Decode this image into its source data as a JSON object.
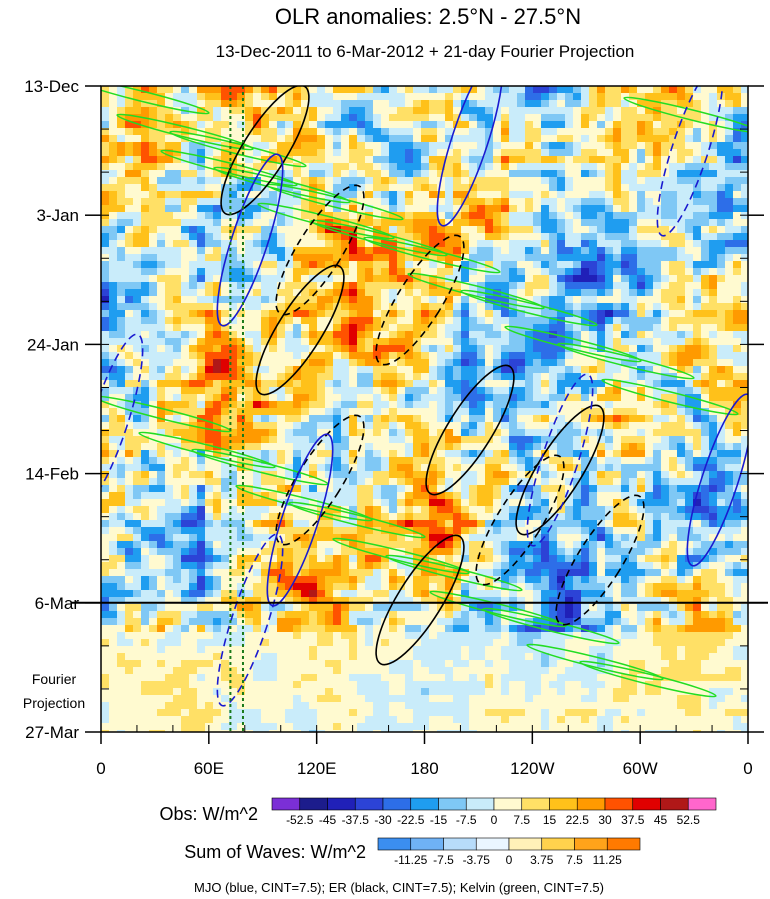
{
  "title": "OLR anomalies: 2.5°N - 27.5°N",
  "subtitle": "13-Dec-2011 to 6-Mar-2012 + 21-day Fourier Projection",
  "projection_label": [
    "Fourier",
    "Projection"
  ],
  "chart_data": {
    "type": "heatmap",
    "xlabel": "",
    "ylabel": "",
    "x_ticks": [
      {
        "lon": 0,
        "label": "0"
      },
      {
        "lon": 60,
        "label": "60E"
      },
      {
        "lon": 120,
        "label": "120E"
      },
      {
        "lon": 180,
        "label": "180"
      },
      {
        "lon": 240,
        "label": "120W"
      },
      {
        "lon": 300,
        "label": "60W"
      },
      {
        "lon": 360,
        "label": "0"
      }
    ],
    "x_range": [
      0,
      360
    ],
    "y_ticks": [
      {
        "day": 0,
        "label": "13-Dec"
      },
      {
        "day": 21,
        "label": "3-Jan"
      },
      {
        "day": 42,
        "label": "24-Jan"
      },
      {
        "day": 63,
        "label": "14-Feb"
      },
      {
        "day": 84,
        "label": "6-Mar"
      },
      {
        "day": 105,
        "label": "27-Mar"
      }
    ],
    "y_range_days": [
      0,
      105
    ],
    "observation_end_day": 84,
    "reference_lines_lon": [
      72,
      79
    ],
    "obs_colorbar": {
      "label": "Obs: W/m^2",
      "levels": [
        "-52.5",
        "-45",
        "-37.5",
        "-30",
        "-22.5",
        "-15",
        "-7.5",
        "0",
        "7.5",
        "15",
        "22.5",
        "30",
        "37.5",
        "45",
        "52.5"
      ],
      "colors": [
        "#7b2fd6",
        "#1c1c8c",
        "#2020b8",
        "#2c43d6",
        "#2d6ee8",
        "#1f9df0",
        "#7fc8f5",
        "#c9ecfa",
        "#fffad0",
        "#ffe066",
        "#ffc11a",
        "#ff9a00",
        "#ff5200",
        "#e00000",
        "#b01818",
        "#ff66cc"
      ]
    },
    "waves_colorbar": {
      "label": "Sum of Waves: W/m^2",
      "levels": [
        "-11.25",
        "-7.5",
        "-3.75",
        "0",
        "3.75",
        "7.5",
        "11.25"
      ],
      "colors": [
        "#3b8ef0",
        "#6fb2f5",
        "#b7dcfa",
        "#eaf6ff",
        "#fff1b8",
        "#ffd24d",
        "#ffa31a",
        "#ff7a00"
      ]
    },
    "contour_legend": "MJO (blue, CINT=7.5); ER (black, CINT=7.5); Kelvin (green, CINT=7.5)",
    "colors": {
      "mjo": "#1a1ad0",
      "er": "#000000",
      "kelvin": "#22dd22",
      "ref_line": "#1a7a1a"
    }
  }
}
